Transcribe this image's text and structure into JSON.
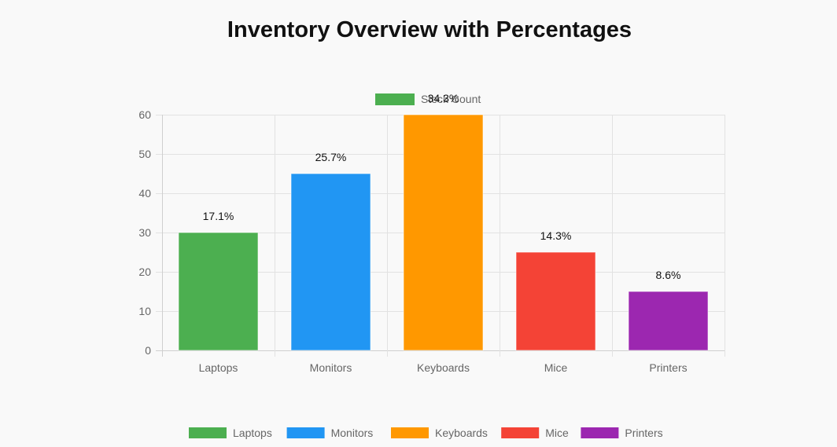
{
  "chart_data": {
    "type": "bar",
    "title": "Inventory Overview with Percentages",
    "xlabel": "",
    "ylabel": "",
    "ylim": [
      0,
      60
    ],
    "yticks": [
      0,
      10,
      20,
      30,
      40,
      50,
      60
    ],
    "grid": true,
    "categories": [
      "Laptops",
      "Monitors",
      "Keyboards",
      "Mice",
      "Printers"
    ],
    "series": [
      {
        "name": "Stock Count",
        "values": [
          30,
          45,
          60,
          25,
          15
        ],
        "percent_labels": [
          "17.1%",
          "25.7%",
          "34.3%",
          "14.3%",
          "8.6%"
        ],
        "colors": [
          "#4caf50",
          "#2196f3",
          "#ff9800",
          "#f44336",
          "#9c27b0"
        ]
      }
    ],
    "top_legend": {
      "label": "Stock Count",
      "color": "#4caf50",
      "position": "top-center"
    },
    "bottom_legend": {
      "position": "bottom-center",
      "items": [
        {
          "label": "Laptops",
          "color": "#4caf50"
        },
        {
          "label": "Monitors",
          "color": "#2196f3"
        },
        {
          "label": "Keyboards",
          "color": "#ff9800"
        },
        {
          "label": "Mice",
          "color": "#f44336"
        },
        {
          "label": "Printers",
          "color": "#9c27b0"
        }
      ]
    }
  }
}
